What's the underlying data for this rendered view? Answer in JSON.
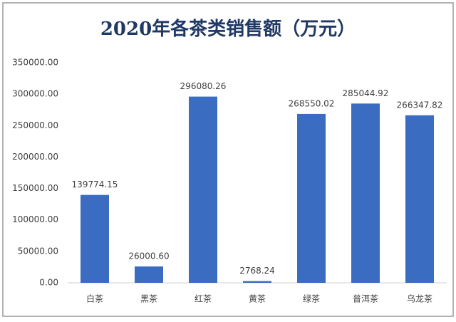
{
  "chart_data": {
    "type": "bar",
    "title": "2020年各茶类销售额（万元）",
    "categories": [
      "白茶",
      "黑茶",
      "红茶",
      "黄茶",
      "绿茶",
      "普洱茶",
      "乌龙茶"
    ],
    "values": [
      139774.15,
      26000.6,
      296080.26,
      2768.24,
      268550.02,
      285044.92,
      266347.82
    ],
    "value_labels": [
      "139774.15",
      "26000.60",
      "296080.26",
      "2768.24",
      "268550.02",
      "285044.92",
      "266347.82"
    ],
    "color": "#3a6cc2",
    "ylim": [
      0,
      350000
    ],
    "yticks": [
      {
        "value": 0,
        "label": "0.00"
      },
      {
        "value": 50000,
        "label": "50000.00"
      },
      {
        "value": 100000,
        "label": "100000.00"
      },
      {
        "value": 150000,
        "label": "150000.00"
      },
      {
        "value": 200000,
        "label": "200000.00"
      },
      {
        "value": 250000,
        "label": "250000.00"
      },
      {
        "value": 300000,
        "label": "300000.00"
      },
      {
        "value": 350000,
        "label": "350000.00"
      }
    ],
    "grid": false
  }
}
